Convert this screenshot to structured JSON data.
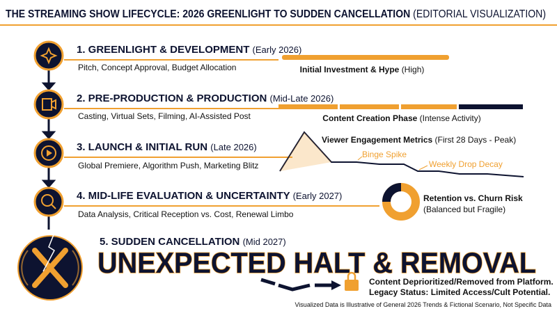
{
  "header": {
    "title": "THE STREAMING SHOW LIFECYCLE: 2026 GREENLIGHT TO SUDDEN CANCELLATION",
    "title_note": "(EDITORIAL VISUALIZATION)"
  },
  "stages": [
    {
      "title": "1. GREENLIGHT & DEVELOPMENT",
      "timing": "(Early 2026)",
      "details": "Pitch, Concept Approval, Budget Allocation",
      "visual_label": "Initial Investment & Hype",
      "visual_note": "(High)"
    },
    {
      "title": "2. PRE-PRODUCTION & PRODUCTION",
      "timing": "(Mid-Late 2026)",
      "details": "Casting, Virtual Sets, Filming, AI-Assisted Post",
      "visual_label": "Content Creation Phase",
      "visual_note": "(Intense Activity)"
    },
    {
      "title": "3. LAUNCH & INITIAL RUN",
      "timing": "(Late 2026)",
      "details": "Global Premiere, Algorithm Push, Marketing Blitz",
      "visual_label": "Viewer Engagement Metrics",
      "visual_note": "(First 28 Days - Peak)",
      "annotations": [
        "Binge Spike",
        "Weekly Drop Decay"
      ]
    },
    {
      "title": "4. MID-LIFE EVALUATION & UNCERTAINTY",
      "timing": "(Early 2027)",
      "details": "Data Analysis, Critical Reception vs. Cost, Renewal Limbo",
      "visual_label": "Retention vs. Churn Risk",
      "visual_note": "(Balanced but Fragile)"
    },
    {
      "title": "5. SUDDEN CANCELLATION",
      "timing": "(Mid 2027)",
      "headline": "UNEXPECTED HALT & REMOVAL",
      "status_lines": [
        "Content Deprioritized/Removed from Platform.",
        "Legacy Status: Limited Access/Cult Potential."
      ]
    }
  ],
  "footer": "Visualized Data is Illustrative of General 2026 Trends & Fictional Scenario, Not Specific Data"
}
